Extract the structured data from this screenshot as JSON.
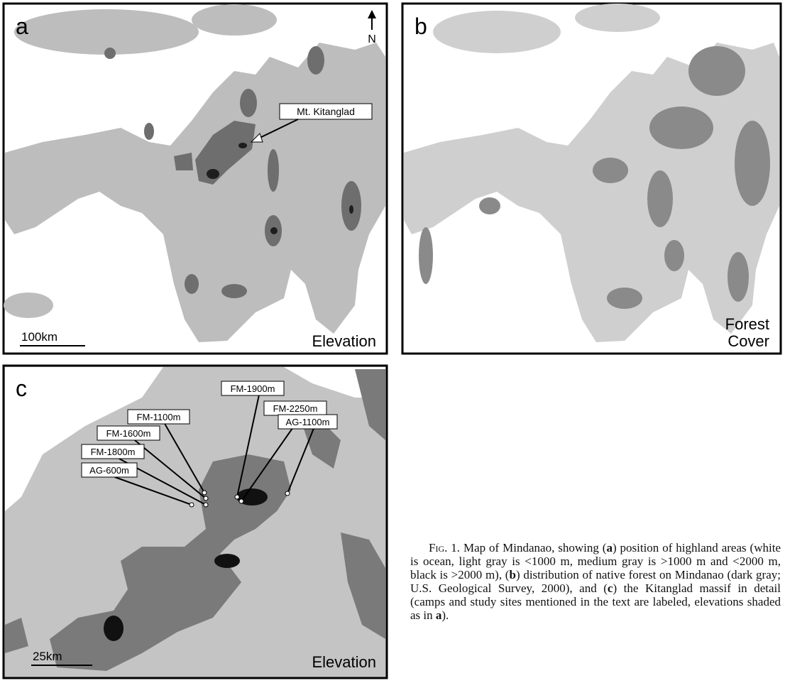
{
  "panel_a": {
    "letter": "a",
    "north": "N",
    "callout": "Mt. Kitanglad",
    "scale_bar": "100km",
    "legend": "Elevation"
  },
  "panel_b": {
    "letter": "b",
    "legend": [
      "Forest",
      "Cover"
    ]
  },
  "panel_c": {
    "letter": "c",
    "scale_bar": "25km",
    "legend": "Elevation",
    "sites": [
      "FM-1100m",
      "FM-1600m",
      "FM-1800m",
      "AG-600m",
      "FM-1900m",
      "FM-2250m",
      "AG-1100m"
    ]
  },
  "caption": {
    "segments": [
      {
        "text": "Fig. 1.",
        "style": "smallcaps"
      },
      {
        "text": " Map of Mindanao, showing (",
        "style": "normal"
      },
      {
        "text": "a",
        "style": "bold"
      },
      {
        "text": ") position of highland areas (white is ocean, light gray is <1000 m, medium gray is >1000 m and <2000 m, black is >2000 m), (",
        "style": "normal"
      },
      {
        "text": "b",
        "style": "bold"
      },
      {
        "text": ") distribution of native forest on Mindanao (dark gray; U.S. Geological Survey, 2000), and (",
        "style": "normal"
      },
      {
        "text": "c",
        "style": "bold"
      },
      {
        "text": ") the Kitanglad massif in detail (camps and study sites mentioned in the text are labeled, elevations shaded as in ",
        "style": "normal"
      },
      {
        "text": "a",
        "style": "bold"
      },
      {
        "text": ").",
        "style": "normal"
      }
    ]
  }
}
